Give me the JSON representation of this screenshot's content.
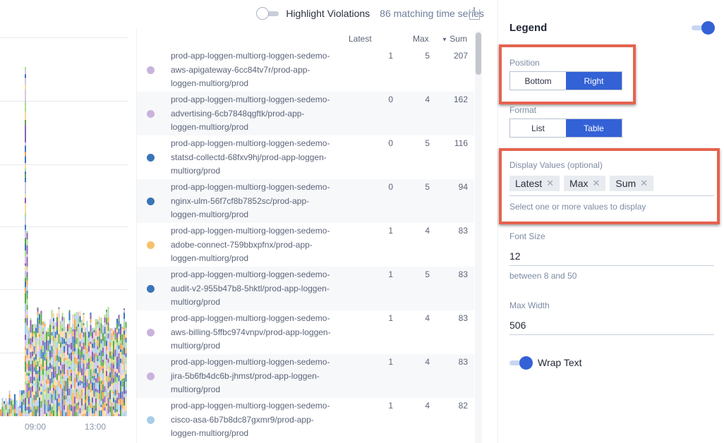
{
  "toolbar": {
    "highlight_label": "Highlight Violations",
    "highlight_on": false,
    "match_count": "86 matching time series",
    "download_icon": "download-icon"
  },
  "chart": {
    "x_ticks": [
      "09:00",
      "13:00"
    ],
    "palette": [
      "#3a75b8",
      "#a8cde8",
      "#f4a24c",
      "#fcd79a",
      "#5aa548",
      "#a9dc8e",
      "#8b5fb0",
      "#d6c5e4"
    ]
  },
  "legend_table": {
    "columns": {
      "latest": "Latest",
      "max": "Max",
      "sum": "Sum"
    },
    "sort_column": "Sum",
    "sort_direction": "descending",
    "rows": [
      {
        "name": [
          "prod-app-loggen-multiorg-loggen-sedemo-",
          "aws-apigateway-6cc84tv7r/prod-app-",
          "loggen-multiorg/prod"
        ],
        "color": "#c9b3dc",
        "latest": "1",
        "max": "5",
        "sum": "207"
      },
      {
        "name": [
          "prod-app-loggen-multiorg-loggen-sedemo-",
          "advertising-6cb7848qgftk/prod-app-",
          "loggen-multiorg/prod"
        ],
        "color": "#c9b3dc",
        "latest": "0",
        "max": "4",
        "sum": "162"
      },
      {
        "name": [
          "prod-app-loggen-multiorg-loggen-sedemo-",
          "statsd-collectd-68fxv9hj/prod-app-loggen-",
          "multiorg/prod"
        ],
        "color": "#3a75b8",
        "latest": "0",
        "max": "5",
        "sum": "116"
      },
      {
        "name": [
          "prod-app-loggen-multiorg-loggen-sedemo-",
          "nginx-ulm-56f7cf8b7852sc/prod-app-",
          "loggen-multiorg/prod"
        ],
        "color": "#3a75b8",
        "latest": "0",
        "max": "5",
        "sum": "94"
      },
      {
        "name": [
          "prod-app-loggen-multiorg-loggen-sedemo-",
          "adobe-connect-759bbxpfnx/prod-app-",
          "loggen-multiorg/prod"
        ],
        "color": "#f7c16a",
        "latest": "1",
        "max": "4",
        "sum": "83"
      },
      {
        "name": [
          "prod-app-loggen-multiorg-loggen-sedemo-",
          "audit-v2-955b47b8-5hktl/prod-app-loggen-",
          "multiorg/prod"
        ],
        "color": "#3a75b8",
        "latest": "1",
        "max": "5",
        "sum": "83"
      },
      {
        "name": [
          "prod-app-loggen-multiorg-loggen-sedemo-",
          "aws-billing-5ffbc974vnpv/prod-app-loggen-",
          "multiorg/prod"
        ],
        "color": "#c9b3dc",
        "latest": "1",
        "max": "4",
        "sum": "83"
      },
      {
        "name": [
          "prod-app-loggen-multiorg-loggen-sedemo-",
          "jira-5b6fb4dc6b-jhmst/prod-app-loggen-",
          "multiorg/prod"
        ],
        "color": "#c9b3dc",
        "latest": "1",
        "max": "4",
        "sum": "83"
      },
      {
        "name": [
          "prod-app-loggen-multiorg-loggen-sedemo-",
          "cisco-asa-6b7b8dc87gxmr9/prod-app-",
          "loggen-multiorg/prod"
        ],
        "color": "#a8cde8",
        "latest": "1",
        "max": "4",
        "sum": "82"
      }
    ]
  },
  "panel": {
    "title": "Legend",
    "legend_enabled": true,
    "position": {
      "label": "Position",
      "options": [
        "Bottom",
        "Right"
      ],
      "selected": "Right"
    },
    "format": {
      "label": "Format",
      "options": [
        "List",
        "Table"
      ],
      "selected": "Table"
    },
    "display_values": {
      "label": "Display Values (optional)",
      "chips": [
        "Latest",
        "Max",
        "Sum"
      ],
      "hint": "Select one or more values to display"
    },
    "font_size": {
      "label": "Font Size",
      "value": "12",
      "hint": "between 8 and 50"
    },
    "max_width": {
      "label": "Max Width",
      "value": "506"
    },
    "wrap_text": {
      "label": "Wrap Text",
      "on": true
    },
    "accent": "#3361d6",
    "highlight_box": "#e5634f"
  }
}
